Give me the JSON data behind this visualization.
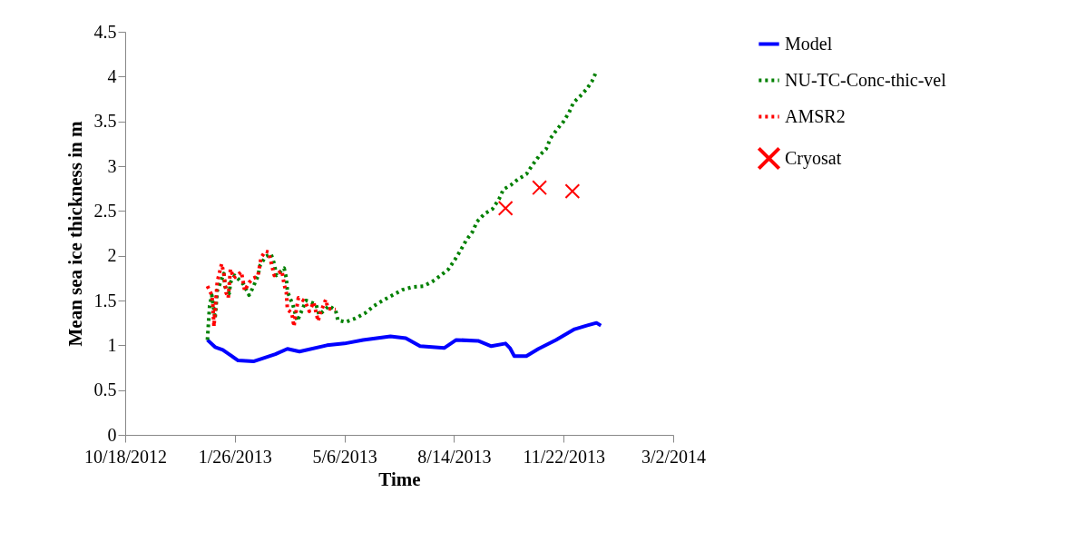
{
  "chart_data": {
    "type": "line",
    "xlabel": "Time",
    "ylabel": "Mean sea ice thickness in m",
    "xlim": [
      "2012-10-18",
      "2014-03-02"
    ],
    "xticks": [
      {
        "value": "2012-10-18",
        "label": "10/18/2012"
      },
      {
        "value": "2013-01-26",
        "label": "1/26/2013"
      },
      {
        "value": "2013-05-06",
        "label": "5/6/2013"
      },
      {
        "value": "2013-08-14",
        "label": "8/14/2013"
      },
      {
        "value": "2013-11-22",
        "label": "11/22/2013"
      },
      {
        "value": "2014-03-02",
        "label": "3/2/2014"
      }
    ],
    "ylim": [
      0,
      4.5
    ],
    "yticks": [
      0,
      0.5,
      1,
      1.5,
      2,
      2.5,
      3,
      3.5,
      4,
      4.5
    ],
    "grid": false,
    "legend": "right",
    "series": [
      {
        "name": "Model",
        "color": "#0000ff",
        "type": "line",
        "line_style": "solid",
        "x": [
          "2013-01-01",
          "2013-01-08",
          "2013-01-15",
          "2013-01-29",
          "2013-02-12",
          "2013-03-04",
          "2013-03-15",
          "2013-03-26",
          "2013-04-20",
          "2013-05-06",
          "2013-05-23",
          "2013-06-17",
          "2013-07-01",
          "2013-07-14",
          "2013-08-05",
          "2013-08-16",
          "2013-09-05",
          "2013-09-17",
          "2013-09-30",
          "2013-10-04",
          "2013-10-08",
          "2013-10-19",
          "2013-10-30",
          "2013-11-15",
          "2013-12-02",
          "2013-12-13",
          "2013-12-22",
          "2013-12-26"
        ],
        "values": [
          1.06,
          0.98,
          0.95,
          0.83,
          0.82,
          0.9,
          0.96,
          0.93,
          1.0,
          1.02,
          1.06,
          1.1,
          1.08,
          0.99,
          0.97,
          1.06,
          1.05,
          0.99,
          1.02,
          0.97,
          0.88,
          0.88,
          0.96,
          1.06,
          1.18,
          1.22,
          1.25,
          1.22
        ]
      },
      {
        "name": "NU-TC-Conc-thic-vel",
        "color": "#008000",
        "type": "line",
        "line_style": "dotted",
        "x": [
          "2013-01-01",
          "2013-01-03",
          "2013-01-05",
          "2013-01-08",
          "2013-01-10",
          "2013-01-16",
          "2013-01-17",
          "2013-01-21",
          "2013-01-22",
          "2013-01-26",
          "2013-02-03",
          "2013-02-08",
          "2013-02-11",
          "2013-02-16",
          "2013-02-18",
          "2013-02-23",
          "2013-02-28",
          "2013-03-03",
          "2013-03-05",
          "2013-03-12",
          "2013-03-14",
          "2013-03-15",
          "2013-03-20",
          "2013-03-24",
          "2013-04-01",
          "2013-04-10",
          "2013-04-13",
          "2013-04-22",
          "2013-04-28",
          "2013-04-30",
          "2013-05-07",
          "2013-05-16",
          "2013-05-25",
          "2013-06-02",
          "2013-06-10",
          "2013-06-19",
          "2013-06-28",
          "2013-07-07",
          "2013-07-17",
          "2013-07-25",
          "2013-08-02",
          "2013-08-09",
          "2013-08-15",
          "2013-08-20",
          "2013-08-25",
          "2013-08-31",
          "2013-09-04",
          "2013-09-11",
          "2013-09-18",
          "2013-09-24",
          "2013-09-28",
          "2013-10-05",
          "2013-10-11",
          "2013-10-19",
          "2013-10-25",
          "2013-10-31",
          "2013-11-06",
          "2013-11-10",
          "2013-11-16",
          "2013-11-22",
          "2013-11-27",
          "2013-12-01",
          "2013-12-07",
          "2013-12-13",
          "2013-12-18",
          "2013-12-22"
        ],
        "values": [
          1.06,
          1.44,
          1.56,
          1.3,
          1.61,
          1.8,
          1.66,
          1.58,
          1.7,
          1.78,
          1.68,
          1.56,
          1.63,
          1.77,
          1.89,
          1.99,
          2.02,
          1.91,
          1.78,
          1.86,
          1.75,
          1.6,
          1.45,
          1.27,
          1.5,
          1.46,
          1.34,
          1.44,
          1.39,
          1.28,
          1.26,
          1.3,
          1.36,
          1.44,
          1.5,
          1.56,
          1.62,
          1.65,
          1.66,
          1.71,
          1.78,
          1.85,
          1.96,
          2.06,
          2.17,
          2.27,
          2.38,
          2.47,
          2.52,
          2.63,
          2.74,
          2.79,
          2.85,
          2.91,
          3.02,
          3.12,
          3.19,
          3.31,
          3.41,
          3.5,
          3.6,
          3.71,
          3.78,
          3.86,
          3.95,
          4.06
        ]
      },
      {
        "name": "AMSR2",
        "color": "#ff0000",
        "type": "line",
        "line_style": "dotted",
        "x": [
          "2013-01-01",
          "2013-01-05",
          "2013-01-06",
          "2013-01-07",
          "2013-01-08",
          "2013-01-10",
          "2013-01-14",
          "2013-01-16",
          "2013-01-18",
          "2013-01-20",
          "2013-01-22",
          "2013-01-25",
          "2013-02-01",
          "2013-02-04",
          "2013-02-08",
          "2013-02-12",
          "2013-02-16",
          "2013-02-19",
          "2013-02-23",
          "2013-02-26",
          "2013-02-27",
          "2013-03-03",
          "2013-03-10",
          "2013-03-12",
          "2013-03-14",
          "2013-03-15",
          "2013-03-19",
          "2013-03-21",
          "2013-03-22",
          "2013-03-25",
          "2013-03-31",
          "2013-04-04",
          "2013-04-08",
          "2013-04-12",
          "2013-04-14",
          "2013-04-19",
          "2013-04-21",
          "2013-04-28"
        ],
        "values": [
          1.66,
          1.56,
          1.44,
          1.21,
          1.39,
          1.71,
          1.91,
          1.8,
          1.59,
          1.53,
          1.85,
          1.75,
          1.82,
          1.61,
          1.7,
          1.75,
          1.77,
          1.98,
          2.05,
          2.04,
          1.98,
          1.78,
          1.83,
          1.68,
          1.59,
          1.4,
          1.36,
          1.21,
          1.31,
          1.53,
          1.49,
          1.38,
          1.48,
          1.27,
          1.36,
          1.51,
          1.41,
          1.4
        ]
      },
      {
        "name": "Cryosat",
        "color": "#ff0000",
        "type": "scatter",
        "marker": "cross",
        "x": [
          "2013-09-30",
          "2013-10-31",
          "2013-11-30"
        ],
        "values": [
          2.53,
          2.76,
          2.72
        ]
      }
    ]
  }
}
